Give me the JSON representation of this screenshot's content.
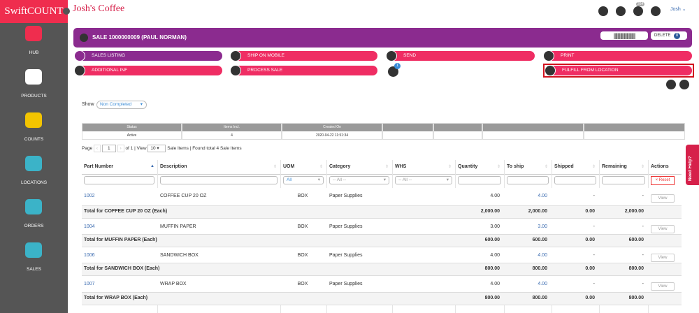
{
  "brand": "SwiftCOUNT",
  "company": "Josh's Coffee",
  "user": "Josh",
  "notification_badge": "264",
  "sidebar": [
    "HUB",
    "PRODUCTS",
    "COUNTS",
    "LOCATIONS",
    "ORDERS",
    "SALES"
  ],
  "header": {
    "title": "SALE 1000000009 (PAUL NORMAN)",
    "delete": "DELETE",
    "delete_count": "0"
  },
  "actions": {
    "row1": [
      "SALES LISTING",
      "SHIP ON MOBILE",
      "SEND",
      "PRINT"
    ],
    "row2": [
      "ADDITIONAL INF",
      "PROCESS SALE",
      "FULFILL FROM LOCATION"
    ],
    "badge": "1"
  },
  "show": {
    "label": "Show",
    "value": "Non Completed"
  },
  "status_table": {
    "headers": [
      "Status",
      "Items Incl.",
      "Created On"
    ],
    "row": [
      "Active",
      "4",
      "2020-04-22 11:51:34"
    ]
  },
  "pagination": {
    "label": "Page",
    "page": "1",
    "of": "of 1 | View",
    "view": "10",
    "summary": "Sale Items | Found total 4 Sale Items"
  },
  "items_table": {
    "headers": [
      "Part Number",
      "Description",
      "UOM",
      "Category",
      "WHS",
      "Quantity",
      "To ship",
      "Shipped",
      "Remaining",
      "Actions"
    ],
    "filters": {
      "uom": "All",
      "category": "-- All --",
      "whs": "-- All --",
      "reset": "× Reset"
    },
    "groups": [
      {
        "item": {
          "part": "1002",
          "description": "COFFEE CUP 20 OZ",
          "uom": "BOX",
          "category": "Paper Supplies",
          "quantity": "4.00",
          "to_ship": "4.00",
          "shipped": "-",
          "remaining": "-",
          "action": "View"
        },
        "total": {
          "label": "Total for COFFEE CUP 20 OZ (Each)",
          "quantity": "2,000.00",
          "to_ship": "2,000.00",
          "shipped": "0.00",
          "remaining": "2,000.00"
        }
      },
      {
        "item": {
          "part": "1004",
          "description": "MUFFIN PAPER",
          "uom": "BOX",
          "category": "Paper Supplies",
          "quantity": "3.00",
          "to_ship": "3.00",
          "shipped": "-",
          "remaining": "-",
          "action": "View"
        },
        "total": {
          "label": "Total for MUFFIN PAPER (Each)",
          "quantity": "600.00",
          "to_ship": "600.00",
          "shipped": "0.00",
          "remaining": "600.00"
        }
      },
      {
        "item": {
          "part": "1006",
          "description": "SANDWICH BOX",
          "uom": "BOX",
          "category": "Paper Supplies",
          "quantity": "4.00",
          "to_ship": "4.00",
          "shipped": "-",
          "remaining": "-",
          "action": "View"
        },
        "total": {
          "label": "Total for SANDWICH BOX (Each)",
          "quantity": "800.00",
          "to_ship": "800.00",
          "shipped": "0.00",
          "remaining": "800.00"
        }
      },
      {
        "item": {
          "part": "1007",
          "description": "WRAP BOX",
          "uom": "BOX",
          "category": "Paper Supplies",
          "quantity": "4.00",
          "to_ship": "4.00",
          "shipped": "-",
          "remaining": "-",
          "action": "View"
        },
        "total": {
          "label": "Total for WRAP BOX (Each)",
          "quantity": "800.00",
          "to_ship": "800.00",
          "shipped": "0.00",
          "remaining": "800.00"
        }
      }
    ]
  },
  "help": "Need Help?"
}
